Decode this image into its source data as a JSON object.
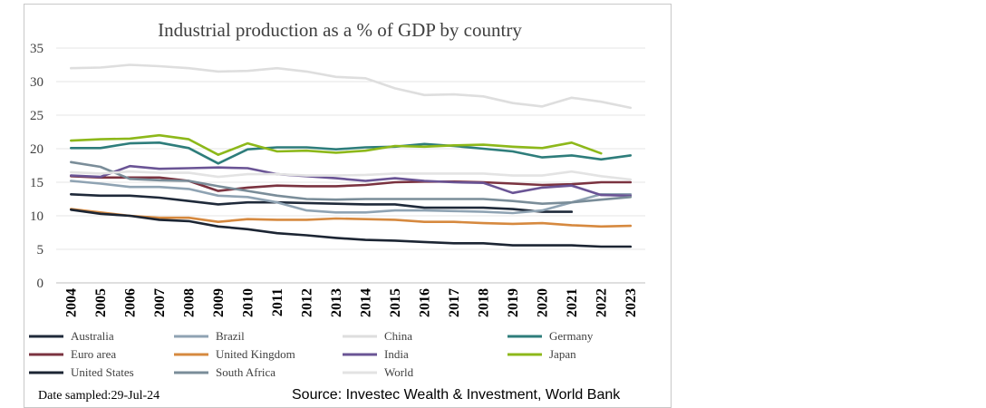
{
  "chart_data": {
    "type": "line",
    "title": "Industrial production as a % of GDP   by country",
    "xlabel": "",
    "ylabel": "",
    "ylim": [
      0,
      35
    ],
    "yticks": [
      0,
      5,
      10,
      15,
      20,
      25,
      30,
      35
    ],
    "grid": "horizontal",
    "categories": [
      "2004",
      "2005",
      "2006",
      "2007",
      "2008",
      "2009",
      "2010",
      "2011",
      "2012",
      "2013",
      "2014",
      "2015",
      "2016",
      "2017",
      "2018",
      "2019",
      "2020",
      "2021",
      "2022",
      "2023"
    ],
    "series": [
      {
        "name": "Australia",
        "color": "#1f2a3a",
        "values": [
          13.2,
          13.0,
          13.0,
          12.7,
          12.2,
          11.7,
          12.0,
          12.0,
          11.9,
          11.8,
          11.7,
          11.7,
          11.2,
          11.2,
          11.2,
          11.0,
          10.6,
          10.6,
          null,
          null
        ]
      },
      {
        "name": "Brazil",
        "color": "#8fa3b3",
        "values": [
          15.2,
          14.8,
          14.3,
          14.3,
          14.0,
          13.0,
          12.8,
          12.0,
          10.8,
          10.5,
          10.5,
          10.8,
          10.8,
          10.7,
          10.6,
          10.4,
          10.8,
          12.0,
          13.2,
          13.2
        ]
      },
      {
        "name": "China",
        "color": "#dedede",
        "values": [
          32.0,
          32.1,
          32.5,
          32.3,
          32.0,
          31.5,
          31.6,
          32.0,
          31.5,
          30.7,
          30.5,
          29.0,
          28.0,
          28.1,
          27.8,
          26.8,
          26.3,
          27.6,
          27.0,
          26.1
        ]
      },
      {
        "name": "Germany",
        "color": "#2e7d7b",
        "values": [
          20.1,
          20.1,
          20.8,
          20.9,
          20.1,
          17.8,
          19.9,
          20.2,
          20.2,
          19.9,
          20.2,
          20.3,
          20.7,
          20.4,
          20.0,
          19.6,
          18.7,
          19.0,
          18.4,
          19.0
        ]
      },
      {
        "name": "Euro area",
        "color": "#7b3340",
        "values": [
          15.9,
          15.7,
          15.7,
          15.7,
          15.2,
          13.7,
          14.2,
          14.5,
          14.4,
          14.4,
          14.6,
          15.0,
          15.1,
          15.1,
          15.0,
          14.8,
          14.6,
          14.7,
          15.0,
          15.0
        ]
      },
      {
        "name": "United Kingdom",
        "color": "#d6893f",
        "values": [
          11.0,
          10.5,
          10.0,
          9.7,
          9.7,
          9.1,
          9.5,
          9.4,
          9.4,
          9.6,
          9.5,
          9.4,
          9.1,
          9.1,
          8.9,
          8.8,
          8.9,
          8.6,
          8.4,
          8.5
        ]
      },
      {
        "name": "India",
        "color": "#6a5495",
        "values": [
          16.0,
          15.8,
          17.4,
          17.0,
          17.1,
          17.2,
          17.1,
          16.2,
          15.9,
          15.6,
          15.2,
          15.6,
          15.2,
          15.0,
          14.9,
          13.4,
          14.2,
          14.5,
          13.1,
          13.0
        ]
      },
      {
        "name": "Japan",
        "color": "#8db81a",
        "values": [
          21.2,
          21.4,
          21.5,
          22.0,
          21.4,
          19.1,
          20.8,
          19.6,
          19.7,
          19.4,
          19.7,
          20.4,
          20.3,
          20.5,
          20.6,
          20.3,
          20.1,
          20.9,
          19.3,
          null
        ]
      },
      {
        "name": "United States",
        "color": "#1c2533",
        "values": [
          10.9,
          10.3,
          10.0,
          9.4,
          9.2,
          8.4,
          8.0,
          7.4,
          7.1,
          6.7,
          6.4,
          6.3,
          6.1,
          5.9,
          5.9,
          5.6,
          5.6,
          5.6,
          5.4,
          5.4
        ]
      },
      {
        "name": "South Africa",
        "color": "#7a8d99",
        "values": [
          18.0,
          17.3,
          15.5,
          15.3,
          15.2,
          14.4,
          13.7,
          13.0,
          12.5,
          12.4,
          12.5,
          12.5,
          12.5,
          12.5,
          12.5,
          12.2,
          11.8,
          12.0,
          12.4,
          12.8
        ]
      },
      {
        "name": "World",
        "color": "#e3e3e3",
        "values": [
          16.5,
          16.3,
          16.6,
          16.4,
          16.4,
          15.8,
          16.2,
          16.2,
          16.0,
          16.0,
          16.1,
          16.3,
          16.3,
          16.3,
          16.3,
          16.0,
          16.0,
          16.6,
          15.9,
          15.4
        ]
      }
    ]
  },
  "footer": {
    "date_sampled": "Date sampled:29-Jul-24",
    "source": "Source: Investec Wealth & Investment, World Bank"
  }
}
